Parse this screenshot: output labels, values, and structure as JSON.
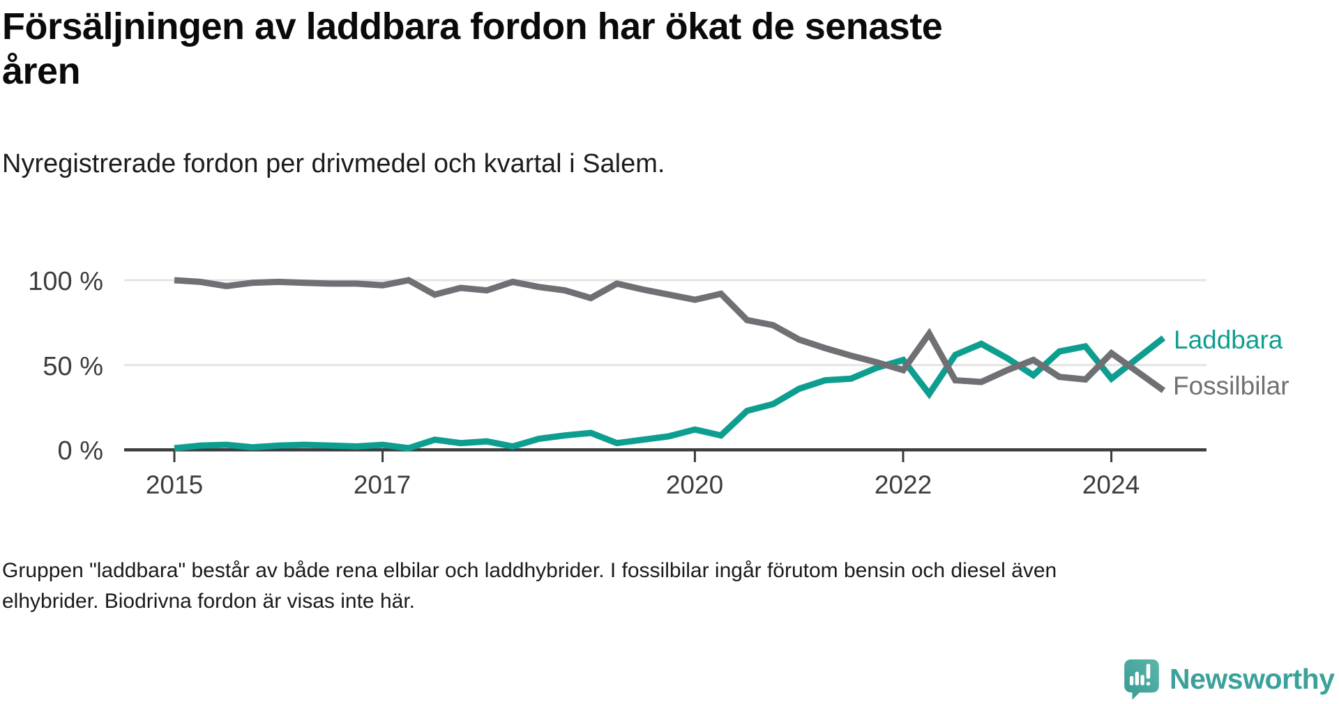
{
  "title_lines": [
    "Försäljningen av laddbara fordon har ökat de senaste",
    "åren"
  ],
  "subtitle": "Nyregistrerade fordon per drivmedel och kvartal i Salem.",
  "footer_lines": [
    "Gruppen \"laddbara\" består av både rena elbilar och laddhybrider. I fossilbilar ingår förutom bensin och diesel även",
    "elhybrider. Biodrivna fordon är visas inte här."
  ],
  "logo": {
    "text": "Newsworthy",
    "color": "#3ba19a"
  },
  "colors": {
    "laddbara": "#0e9e90",
    "fossilbilar": "#6f6f74",
    "gridline": "#e4e4e4",
    "axis": "#3a3a3a",
    "tick_label": "#3c3c3c"
  },
  "chart_data": {
    "type": "line",
    "title": "Nyregistrerade fordon per drivmedel och kvartal i Salem",
    "x_unit": "quarter",
    "ylim": [
      0,
      100
    ],
    "grid": "horizontal",
    "legend_position": "right-end-of-line",
    "y_tick_labels": [
      "100 %",
      "50 %",
      "0 %"
    ],
    "y_tick_values": [
      100,
      50,
      0
    ],
    "x_tick_labels": [
      "2015",
      "2017",
      "2020",
      "2022",
      "2024"
    ],
    "x_tick_years": [
      2015,
      2017,
      2020,
      2022,
      2024
    ],
    "quarters": [
      "2015-Q1",
      "2015-Q2",
      "2015-Q3",
      "2015-Q4",
      "2016-Q1",
      "2016-Q2",
      "2016-Q3",
      "2016-Q4",
      "2017-Q1",
      "2017-Q2",
      "2017-Q3",
      "2017-Q4",
      "2018-Q1",
      "2018-Q2",
      "2018-Q3",
      "2018-Q4",
      "2019-Q1",
      "2019-Q2",
      "2019-Q3",
      "2019-Q4",
      "2020-Q1",
      "2020-Q2",
      "2020-Q3",
      "2020-Q4",
      "2021-Q1",
      "2021-Q2",
      "2021-Q3",
      "2021-Q4",
      "2022-Q1",
      "2022-Q2",
      "2022-Q3",
      "2022-Q4",
      "2023-Q1",
      "2023-Q2",
      "2023-Q3",
      "2023-Q4",
      "2024-Q1",
      "2024-Q2",
      "2024-Q3"
    ],
    "series": [
      {
        "name": "Laddbara",
        "color": "#0e9e90",
        "unit": "%",
        "values": [
          1,
          2.5,
          3,
          1.5,
          2.5,
          3,
          2.5,
          2,
          3,
          1,
          6,
          4,
          5,
          2,
          6.5,
          8.5,
          10,
          4,
          6,
          8,
          12,
          8.5,
          23,
          27,
          36,
          41,
          42,
          48.5,
          53,
          33,
          56,
          62.5,
          54,
          44,
          58,
          61,
          42,
          54,
          66
        ]
      },
      {
        "name": "Fossilbilar",
        "color": "#6f6f74",
        "unit": "%",
        "values": [
          100,
          99,
          96.5,
          98.5,
          99,
          98.5,
          98,
          98,
          97,
          100,
          91.5,
          95.5,
          94,
          99,
          96,
          94,
          89.5,
          98,
          94.5,
          91.5,
          88.5,
          92,
          76.5,
          73.5,
          65,
          60,
          55.5,
          51.5,
          47,
          68.5,
          41,
          40,
          47,
          53,
          43,
          41.5,
          57,
          46,
          35
        ]
      }
    ]
  }
}
